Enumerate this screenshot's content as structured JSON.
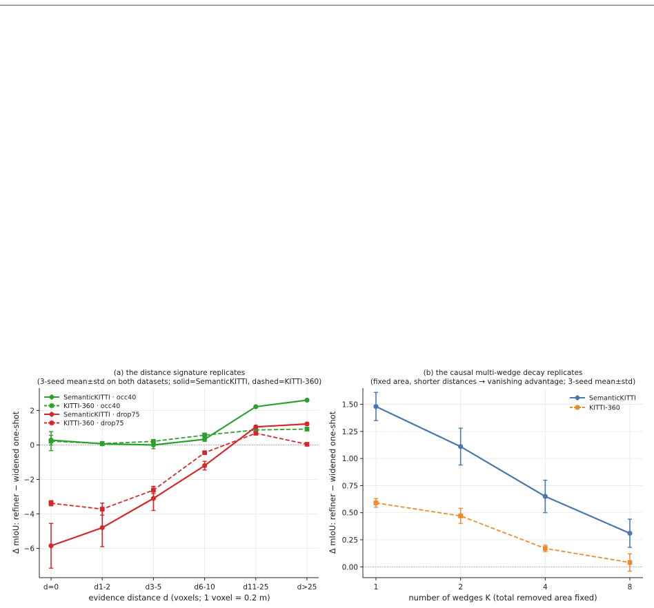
{
  "chart_data": [
    {
      "type": "line",
      "title": "(a) the distance signature replicates",
      "subtitle": "(3-seed mean±std on both datasets; solid=SemanticKITTI, dashed=KITTI-360)",
      "xlabel": "evidence distance d (voxels; 1 voxel = 0.2 m)",
      "ylabel": "Δ mIoU: refiner − widened one-shot",
      "categories": [
        "d=0",
        "d1-2",
        "d3-5",
        "d6-10",
        "d11-25",
        "d>25"
      ],
      "ylim": [
        -7.7,
        3.3
      ],
      "yticks": [
        -6,
        -4,
        -2,
        0,
        2
      ],
      "ytick_labels": [
        "−6",
        "−4",
        "−2",
        "0",
        "2"
      ],
      "grid": true,
      "legend_position": "top-left",
      "series": [
        {
          "name": "SemanticKITTI · occ40",
          "color": "#2ca02c",
          "style": "solid",
          "marker": "circle",
          "values": [
            0.28,
            0.07,
            0.0,
            0.33,
            2.22,
            2.6
          ],
          "std": [
            0.28,
            0.05,
            0.22,
            0.12,
            0.06,
            0.06
          ]
        },
        {
          "name": "KITTI-360 · occ40",
          "color": "#2ca02c",
          "style": "dashed",
          "marker": "square",
          "values": [
            0.22,
            0.08,
            0.21,
            0.57,
            0.87,
            0.92
          ],
          "std": [
            0.55,
            0.12,
            0.1,
            0.12,
            0.08,
            0.06
          ]
        },
        {
          "name": "SemanticKITTI · drop75",
          "color": "#d62728",
          "style": "solid",
          "marker": "circle",
          "values": [
            -5.85,
            -4.8,
            -3.1,
            -1.2,
            1.05,
            1.22
          ],
          "std": [
            1.3,
            1.1,
            0.7,
            0.25,
            0.07,
            0.08
          ]
        },
        {
          "name": "KITTI-360 · drop75",
          "color": "#d62728",
          "style": "dashed",
          "marker": "square",
          "values": [
            -3.38,
            -3.72,
            -2.62,
            -0.45,
            0.68,
            0.04
          ],
          "std": [
            0.15,
            0.35,
            0.2,
            0.1,
            0.08,
            0.05
          ]
        }
      ]
    },
    {
      "type": "line",
      "title": "(b) the causal multi-wedge decay replicates",
      "subtitle": "(fixed area, shorter distances → vanishing advantage; 3-seed mean±std)",
      "xlabel": "number of wedges K (total removed area fixed)",
      "ylabel": "Δ mIoU: refiner − widened one-shot",
      "x": [
        1,
        2,
        4,
        8
      ],
      "xscale": "log2",
      "xtick_labels": [
        "1",
        "2",
        "4",
        "8"
      ],
      "ylim": [
        -0.1,
        1.65
      ],
      "yticks": [
        0.0,
        0.25,
        0.5,
        0.75,
        1.0,
        1.25,
        1.5
      ],
      "ytick_labels": [
        "0.00",
        "0.25",
        "0.50",
        "0.75",
        "1.00",
        "1.25",
        "1.50"
      ],
      "grid": true,
      "legend_position": "top-right",
      "series": [
        {
          "name": "SemanticKITTI",
          "color": "#4a76b0",
          "style": "solid",
          "marker": "circle",
          "values": [
            1.48,
            1.11,
            0.65,
            0.31
          ],
          "std": [
            0.13,
            0.17,
            0.15,
            0.13
          ]
        },
        {
          "name": "KITTI-360",
          "color": "#ee8a2f",
          "style": "dashed",
          "marker": "square",
          "values": [
            0.59,
            0.47,
            0.17,
            0.04
          ],
          "std": [
            0.04,
            0.07,
            0.03,
            0.08
          ]
        }
      ]
    }
  ]
}
